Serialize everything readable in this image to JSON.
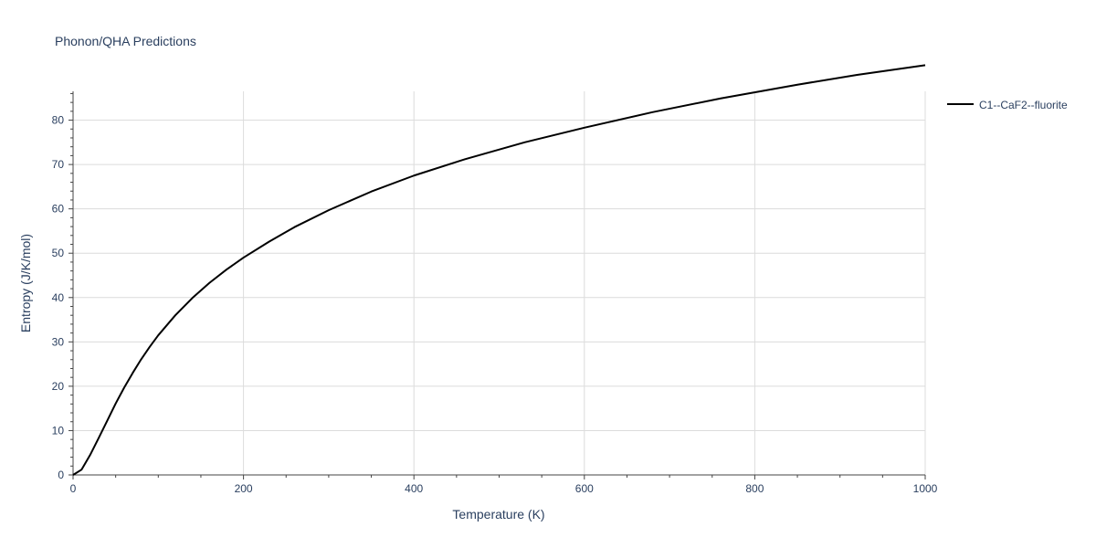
{
  "chart_data": {
    "type": "line",
    "title": "Phonon/QHA Predictions",
    "xlabel": "Temperature (K)",
    "ylabel": "Entropy (J/K/mol)",
    "xlim": [
      0,
      1000
    ],
    "ylim": [
      0,
      86.5
    ],
    "xticks": [
      0,
      200,
      400,
      600,
      800,
      1000
    ],
    "yticks": [
      0,
      10,
      20,
      30,
      40,
      50,
      60,
      70,
      80
    ],
    "grid": true,
    "legend_position": "top-right",
    "series": [
      {
        "name": "C1--CaF2--fluorite",
        "color": "#000000",
        "x": [
          0,
          10,
          20,
          30,
          40,
          50,
          60,
          70,
          80,
          90,
          100,
          120,
          140,
          160,
          180,
          200,
          230,
          260,
          300,
          350,
          400,
          460,
          530,
          600,
          680,
          760,
          850,
          920,
          1000
        ],
        "y": [
          0,
          1.2,
          4.5,
          8.3,
          12.2,
          16.1,
          19.7,
          23.0,
          26.1,
          28.9,
          31.5,
          36.0,
          39.9,
          43.3,
          46.3,
          49.0,
          52.6,
          55.9,
          59.7,
          63.9,
          67.5,
          71.2,
          75.0,
          78.3,
          81.8,
          84.9,
          88.0,
          90.2,
          92.4
        ]
      }
    ]
  }
}
